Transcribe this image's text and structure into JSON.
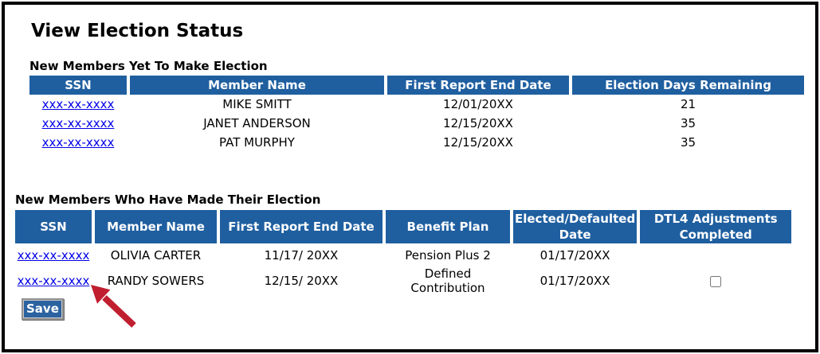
{
  "page": {
    "title": "View Election Status"
  },
  "colors": {
    "table_header_bg": "#1f5fa0",
    "link_blue": "#0000e6",
    "arrow_red": "#c01f2f",
    "save_button_bg": "#2b62a0",
    "frame_border": "#000000"
  },
  "tables": [
    {
      "section_label": "New Members Yet To Make Election",
      "columns": [
        "SSN",
        "Member Name",
        "First Report End Date",
        "Election Days Remaining"
      ],
      "rows": [
        [
          {
            "link": "xxx-xx-xxxx"
          },
          "MIKE SMITT",
          "12/01/20XX",
          "21"
        ],
        [
          {
            "link": "xxx-xx-xxxx"
          },
          "JANET ANDERSON",
          "12/15/20XX",
          "35"
        ],
        [
          {
            "link": "xxx-xx-xxxx"
          },
          "PAT MURPHY",
          "12/15/20XX",
          "35"
        ]
      ]
    },
    {
      "section_label": "New Members Who Have Made Their Election",
      "columns": [
        "SSN",
        "Member Name",
        "First Report End Date",
        "Benefit Plan",
        "Elected/Defaulted Date",
        "DTL4 Adjustments Completed"
      ],
      "rows": [
        [
          {
            "link": "xxx-xx-xxxx"
          },
          "OLIVIA CARTER",
          "11/17/ 20XX",
          "Pension Plus 2",
          "01/17/20XX",
          null
        ],
        [
          {
            "link": "xxx-xx-xxxx"
          },
          "RANDY SOWERS",
          "12/15/ 20XX",
          "Defined Contribution",
          "01/17/20XX",
          {
            "checkbox": false
          }
        ]
      ]
    }
  ],
  "save_button": {
    "label": "Save"
  }
}
